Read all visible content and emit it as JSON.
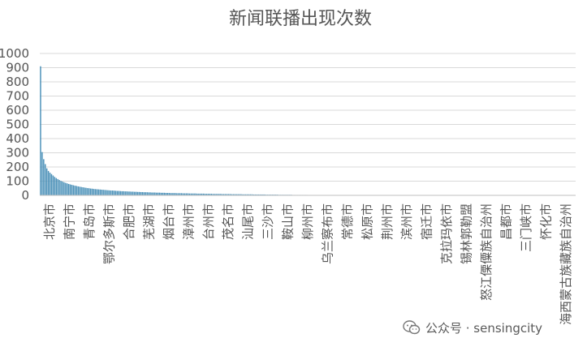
{
  "chart_data": {
    "type": "bar",
    "title": "新闻联播出现次数",
    "xlabel": "",
    "ylabel": "",
    "ylim": [
      0,
      1000
    ],
    "yticks": [
      0,
      100,
      200,
      300,
      400,
      500,
      600,
      700,
      800,
      900,
      1000
    ],
    "grid": "horizontal",
    "bar_color": "#4a90b8",
    "labeled_categories": [
      "北京市",
      "南宁市",
      "青岛市",
      "鄂尔多斯市",
      "合肥市",
      "芜湖市",
      "烟台市",
      "漳州市",
      "台州市",
      "茂名市",
      "汕尾市",
      "三沙市",
      "鞍山市",
      "柳州市",
      "乌兰察布市",
      "常德市",
      "松原市",
      "荆州市",
      "滨州市",
      "宿迁市",
      "克拉玛依市",
      "锡林郭勒盟",
      "怒江傈僳族自治州",
      "昌都市",
      "三门峡市",
      "怀化市",
      "海西蒙古族藏族自治州"
    ],
    "values": [
      910,
      305,
      255,
      220,
      190,
      172,
      160,
      150,
      140,
      130,
      122,
      115,
      108,
      102,
      97,
      92,
      88,
      84,
      80,
      77,
      74,
      71,
      68,
      66,
      63,
      61,
      59,
      57,
      55,
      53,
      51,
      50,
      48,
      47,
      45,
      44,
      43,
      42,
      41,
      40,
      39,
      38,
      37,
      36,
      35,
      34,
      34,
      33,
      32,
      31,
      31,
      30,
      29,
      29,
      28,
      28,
      27,
      27,
      26,
      26,
      25,
      25,
      24,
      24,
      23,
      23,
      22,
      22,
      22,
      21,
      21,
      20,
      20,
      20,
      19,
      19,
      19,
      18,
      18,
      18,
      17,
      17,
      17,
      16,
      16,
      16,
      16,
      15,
      15,
      15,
      15,
      14,
      14,
      14,
      14,
      13,
      13,
      13,
      13,
      13,
      12,
      12,
      12,
      12,
      12,
      11,
      11,
      11,
      11,
      11,
      10,
      10,
      10,
      10,
      10,
      10,
      9,
      9,
      9,
      9,
      9,
      9,
      8,
      8,
      8,
      8,
      8,
      8,
      8,
      7,
      7,
      7,
      7,
      7,
      7,
      7,
      6,
      6,
      6,
      6,
      6,
      6,
      6,
      6,
      5,
      5,
      5,
      5,
      5,
      5,
      5,
      5,
      4,
      4,
      4,
      4,
      4,
      4,
      4,
      4,
      4,
      3,
      3,
      3,
      3,
      3,
      3,
      3,
      3,
      3,
      3,
      2,
      2,
      2,
      2,
      2,
      2,
      2,
      2,
      2,
      2,
      2,
      1,
      1,
      1,
      1,
      1,
      1,
      1,
      1,
      1,
      1,
      1,
      1,
      1,
      1,
      1,
      1,
      1,
      1,
      1,
      1,
      1,
      1,
      1,
      1,
      1,
      1,
      1,
      1,
      1,
      1,
      1,
      1,
      1,
      1,
      1,
      1,
      1,
      1,
      1,
      1,
      1,
      1,
      1,
      1,
      1,
      1,
      1,
      1,
      1,
      1,
      1,
      1,
      1,
      1,
      1,
      1,
      1,
      1,
      1,
      1,
      1,
      1,
      1,
      1,
      1,
      1,
      1,
      1,
      1,
      1,
      1,
      1,
      1,
      1,
      1,
      1,
      1,
      1,
      1,
      1,
      1,
      1,
      1,
      1,
      1,
      1,
      1,
      1,
      1,
      1,
      1,
      1,
      1,
      1,
      1,
      1,
      1,
      1,
      1,
      1,
      1,
      1,
      1,
      1,
      1,
      1,
      1,
      1,
      1,
      1,
      1,
      1,
      1,
      1,
      1,
      1,
      1,
      1,
      1,
      1,
      1,
      1,
      1,
      1,
      1,
      1,
      1,
      1,
      1,
      1,
      1,
      1,
      1,
      1,
      1,
      1,
      1,
      1,
      1,
      1,
      1,
      1,
      1,
      1,
      1,
      1,
      1,
      1,
      1,
      1,
      1,
      1,
      1,
      1,
      1,
      1,
      1,
      1,
      1,
      1
    ]
  },
  "watermark": {
    "icon": "wechat-icon",
    "text": "公众号 · sensingcity"
  }
}
